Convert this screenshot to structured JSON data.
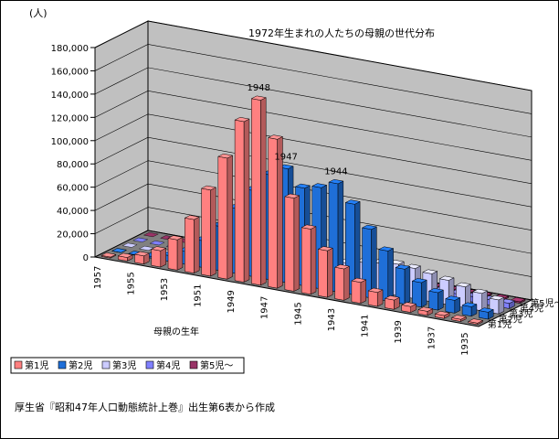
{
  "chart_data": {
    "type": "bar",
    "title": "1972年生まれの人たちの母親の世代分布",
    "y_unit": "(人)",
    "xlabel": "母親の生年",
    "ylim": [
      0,
      180000
    ],
    "y_ticks": [
      "0",
      "20,000",
      "40,000",
      "60,000",
      "80,000",
      "100,000",
      "120,000",
      "140,000",
      "160,000",
      "180,000"
    ],
    "x_tick_labels": [
      "1957",
      "1955",
      "1953",
      "1951",
      "1949",
      "1947",
      "1945",
      "1943",
      "1941",
      "1939",
      "1937",
      "1935"
    ],
    "categories": [
      "1957",
      "1956",
      "1955",
      "1954",
      "1953",
      "1952",
      "1951",
      "1950",
      "1949",
      "1948",
      "1947",
      "1946",
      "1945",
      "1944",
      "1943",
      "1942",
      "1941",
      "1940",
      "1939",
      "1938",
      "1937",
      "1936",
      "1935"
    ],
    "series": [
      {
        "name": "第1児",
        "color": "#ff8080",
        "values": [
          800,
          3000,
          7000,
          14000,
          26000,
          46000,
          74000,
          104000,
          138000,
          159000,
          128000,
          80000,
          56000,
          40000,
          27000,
          18000,
          12000,
          8000,
          5000,
          3500,
          2500,
          1800,
          1200
        ]
      },
      {
        "name": "第2児",
        "color": "#1f6fd8",
        "values": [
          100,
          400,
          1500,
          5000,
          11000,
          23000,
          38000,
          56000,
          74000,
          90000,
          98000,
          84000,
          87000,
          93000,
          78000,
          59000,
          43000,
          30000,
          21000,
          15000,
          11000,
          8000,
          6000
        ]
      },
      {
        "name": "第3児",
        "color": "#ccccff",
        "values": [
          0,
          0,
          100,
          200,
          500,
          1000,
          2000,
          3500,
          6000,
          9000,
          12000,
          15000,
          17000,
          20000,
          23000,
          25000,
          27000,
          26000,
          24000,
          21000,
          18000,
          15000,
          12000
        ]
      },
      {
        "name": "第4児",
        "color": "#8080ff",
        "values": [
          0,
          0,
          0,
          0,
          0,
          100,
          200,
          300,
          500,
          700,
          1000,
          1300,
          1600,
          2000,
          2500,
          3000,
          3500,
          4000,
          4300,
          4500,
          4600,
          4600,
          4500
        ]
      },
      {
        "name": "第5児～",
        "color": "#993366",
        "values": [
          0,
          0,
          0,
          0,
          0,
          0,
          0,
          0,
          100,
          100,
          200,
          300,
          400,
          500,
          600,
          700,
          800,
          900,
          1000,
          1100,
          1200,
          1300,
          1300
        ]
      }
    ],
    "annotations": [
      "1948",
      "1947",
      "1944"
    ],
    "legend_position": "bottom-left",
    "grid": true
  },
  "footnote": "厚生省『昭和47年人口動態統計上巻』出生第6表から作成"
}
